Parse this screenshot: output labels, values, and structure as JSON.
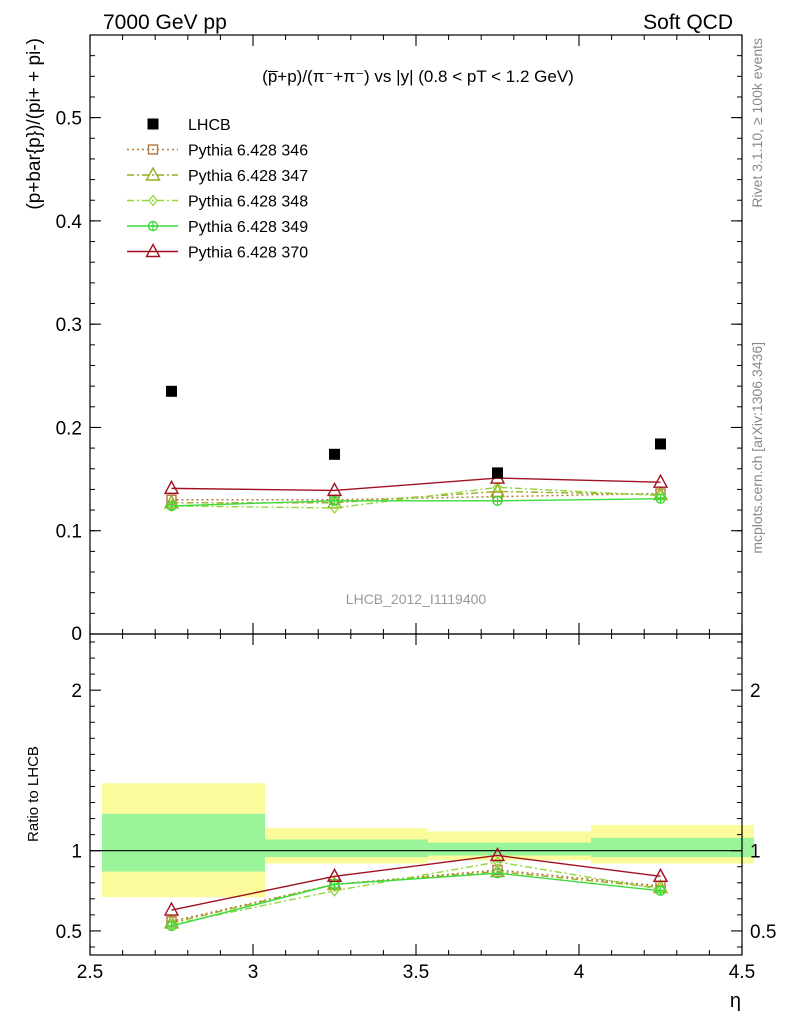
{
  "header": {
    "left": "7000 GeV pp",
    "right": "Soft QCD"
  },
  "side_labels": {
    "rivet": "Rivet 3.1.10, ≥ 100k events",
    "mcplots": "mcplots.cern.ch [arXiv:1306.3436]"
  },
  "chart_data": [
    {
      "type": "scatter",
      "title": "(p̅+p)/(π⁻+π⁻) vs |y| (0.8 < pT < 1.2 GeV)",
      "watermark": "LHCB_2012_I1119400",
      "ylabel": "(p+bar{p})/(pi+ + pi-)",
      "xlim": [
        2.5,
        4.5
      ],
      "ylim": [
        0,
        0.58
      ],
      "yticks": [
        0.1,
        0.2,
        0.3,
        0.4,
        0.5
      ],
      "yticklabels": [
        "0.1",
        "0.2",
        "0.3",
        "0.4",
        "0.5"
      ],
      "legend_position": "top-left",
      "x": [
        2.75,
        3.25,
        3.75,
        4.25
      ],
      "series": [
        {
          "name": "LHCB",
          "values": [
            0.235,
            0.174,
            0.156,
            0.184
          ],
          "color": "#000000",
          "marker": "square",
          "style": "points"
        },
        {
          "name": "Pythia 6.428 346",
          "values": [
            0.13,
            0.13,
            0.133,
            0.136
          ],
          "color": "#b5763a",
          "marker": "open-square",
          "style": "dotted"
        },
        {
          "name": "Pythia 6.428 347",
          "values": [
            0.127,
            0.127,
            0.138,
            0.135
          ],
          "color": "#9aab1f",
          "marker": "open-triangle",
          "style": "dashdot"
        },
        {
          "name": "Pythia 6.428 348",
          "values": [
            0.124,
            0.122,
            0.142,
            0.134
          ],
          "color": "#8ed93a",
          "marker": "open-diamond",
          "style": "dashdot"
        },
        {
          "name": "Pythia 6.428 349",
          "values": [
            0.124,
            0.129,
            0.129,
            0.131
          ],
          "color": "#3cd93c",
          "marker": "crossed-circle",
          "style": "solid"
        },
        {
          "name": "Pythia 6.428 370",
          "values": [
            0.141,
            0.139,
            0.151,
            0.147
          ],
          "color": "#a0101f",
          "marker": "open-triangle",
          "style": "solid"
        }
      ]
    },
    {
      "type": "line",
      "ylabel": "Ratio to LHCB",
      "xlabel": "η",
      "xlim": [
        2.5,
        4.5
      ],
      "ylim": [
        0.35,
        2.35
      ],
      "xticks": [
        2.5,
        3,
        3.5,
        4,
        4.5
      ],
      "xticklabels": [
        "2.5",
        "3",
        "3.5",
        "4",
        "4.5"
      ],
      "yticks": [
        0.5,
        1,
        2
      ],
      "yticklabels": [
        "0.5",
        "1",
        "2"
      ],
      "bands": [
        {
          "x": [
            2.5,
            3.0
          ],
          "stat": [
            0.87,
            1.23
          ],
          "total": [
            0.71,
            1.42
          ]
        },
        {
          "x": [
            3.0,
            3.5
          ],
          "stat": [
            0.96,
            1.07
          ],
          "total": [
            0.92,
            1.14
          ]
        },
        {
          "x": [
            3.5,
            4.0
          ],
          "stat": [
            0.97,
            1.05
          ],
          "total": [
            0.94,
            1.12
          ]
        },
        {
          "x": [
            4.0,
            4.5
          ],
          "stat": [
            0.96,
            1.08
          ],
          "total": [
            0.92,
            1.16
          ]
        }
      ],
      "band_colors": {
        "stat": "#9af59a",
        "total": "#fbfb9b"
      },
      "x": [
        2.75,
        3.25,
        3.75,
        4.25
      ],
      "series": [
        {
          "name": "Pythia 6.428 346",
          "values": [
            0.56,
            0.79,
            0.88,
            0.78
          ]
        },
        {
          "name": "Pythia 6.428 347",
          "values": [
            0.55,
            0.79,
            0.87,
            0.77
          ]
        },
        {
          "name": "Pythia 6.428 348",
          "values": [
            0.54,
            0.75,
            0.93,
            0.76
          ]
        },
        {
          "name": "Pythia 6.428 349",
          "values": [
            0.53,
            0.79,
            0.86,
            0.75
          ]
        },
        {
          "name": "Pythia 6.428 370",
          "values": [
            0.63,
            0.84,
            0.97,
            0.84
          ]
        }
      ]
    }
  ]
}
